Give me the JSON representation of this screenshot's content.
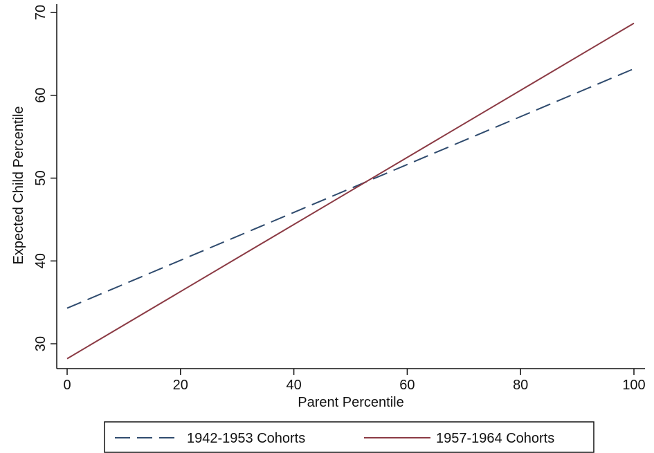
{
  "chart_data": {
    "type": "line",
    "title": "",
    "xlabel": "Parent Percentile",
    "ylabel": "Expected Child Percentile",
    "xlim": [
      0,
      100
    ],
    "ylim": [
      27,
      70
    ],
    "xticks": [
      0,
      20,
      40,
      60,
      80,
      100
    ],
    "yticks": [
      30,
      40,
      50,
      60,
      70
    ],
    "xtick_labels": [
      "0",
      "20",
      "40",
      "60",
      "80",
      "100"
    ],
    "ytick_labels": [
      "30",
      "40",
      "50",
      "60",
      "70"
    ],
    "grid": false,
    "legend_position": "bottom",
    "series": [
      {
        "name": "1942-1953 Cohorts",
        "style": "dashed",
        "color": "#2f4b6e",
        "x": [
          0,
          100
        ],
        "y": [
          34.3,
          63.2
        ]
      },
      {
        "name": "1957-1964 Cohorts",
        "style": "solid",
        "color": "#8b3a44",
        "x": [
          0,
          100
        ],
        "y": [
          28.2,
          68.7
        ]
      }
    ]
  }
}
